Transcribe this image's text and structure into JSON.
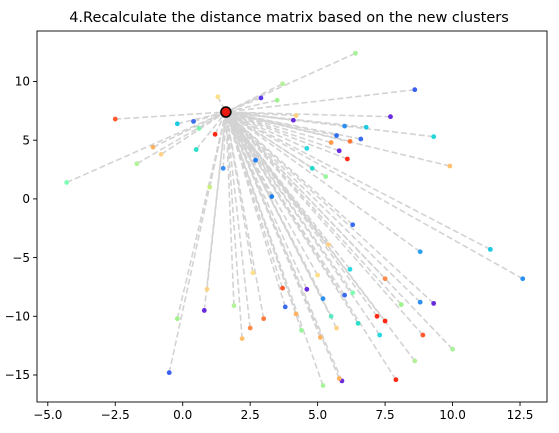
{
  "chart_data": {
    "type": "scatter",
    "title": "4.Recalculate the distance matrix based on the new clusters",
    "xlabel": "",
    "ylabel": "",
    "xlim": [
      -5.4,
      13.5
    ],
    "ylim": [
      -17.3,
      14.3
    ],
    "x_ticks": [
      -5.0,
      -2.5,
      0.0,
      2.5,
      5.0,
      7.5,
      10.0,
      12.5
    ],
    "x_tick_labels": [
      "−5.0",
      "−2.5",
      "0.0",
      "2.5",
      "5.0",
      "7.5",
      "10.0",
      "12.5"
    ],
    "y_ticks": [
      10,
      5,
      0,
      -5,
      -10,
      -15
    ],
    "y_tick_labels": [
      "10",
      "5",
      "0",
      "−5",
      "−10",
      "−15"
    ],
    "grid": false,
    "center": {
      "x": 1.6,
      "y": 7.4,
      "color": "#e8190f"
    },
    "line_color": "#d3d3d3",
    "points": [
      {
        "x": -4.3,
        "y": 1.4,
        "color": "#80ffb4"
      },
      {
        "x": -2.5,
        "y": 6.8,
        "color": "#ff5a2d"
      },
      {
        "x": -1.7,
        "y": 3.0,
        "color": "#b4f29b"
      },
      {
        "x": -1.1,
        "y": 4.4,
        "color": "#ffb360"
      },
      {
        "x": -0.8,
        "y": 3.8,
        "color": "#ffd28a"
      },
      {
        "x": -0.2,
        "y": 6.4,
        "color": "#1ec8e0"
      },
      {
        "x": 0.4,
        "y": 6.6,
        "color": "#3b6cf0"
      },
      {
        "x": 0.5,
        "y": 4.2,
        "color": "#2be0c8"
      },
      {
        "x": 0.6,
        "y": 6.0,
        "color": "#7cf2ad"
      },
      {
        "x": 1.0,
        "y": 1.0,
        "color": "#c8f07a"
      },
      {
        "x": 1.2,
        "y": 5.5,
        "color": "#ff2a14"
      },
      {
        "x": 1.3,
        "y": 8.7,
        "color": "#ffe08a"
      },
      {
        "x": 1.5,
        "y": 2.6,
        "color": "#3a90f0"
      },
      {
        "x": 2.7,
        "y": 3.3,
        "color": "#1f7ef0"
      },
      {
        "x": 2.9,
        "y": 8.6,
        "color": "#5c3ae8"
      },
      {
        "x": 3.5,
        "y": 8.4,
        "color": "#a0f28c"
      },
      {
        "x": 3.7,
        "y": 9.8,
        "color": "#b4f09a"
      },
      {
        "x": 4.1,
        "y": 6.7,
        "color": "#6a2ae0"
      },
      {
        "x": 4.2,
        "y": 7.1,
        "color": "#ffd080"
      },
      {
        "x": 4.6,
        "y": 4.3,
        "color": "#2ad9e0"
      },
      {
        "x": 4.8,
        "y": 2.6,
        "color": "#20d8d0"
      },
      {
        "x": 5.3,
        "y": 1.9,
        "color": "#9cf59c"
      },
      {
        "x": 5.5,
        "y": 4.8,
        "color": "#ff9a4a"
      },
      {
        "x": 5.7,
        "y": 5.4,
        "color": "#2f70f0"
      },
      {
        "x": 5.8,
        "y": 4.1,
        "color": "#6a2ae0"
      },
      {
        "x": 6.0,
        "y": 6.2,
        "color": "#2a90f0"
      },
      {
        "x": 6.1,
        "y": 3.4,
        "color": "#ff2a14"
      },
      {
        "x": 6.2,
        "y": 4.9,
        "color": "#ff7a3a"
      },
      {
        "x": 6.4,
        "y": 12.4,
        "color": "#a8f29c"
      },
      {
        "x": 6.6,
        "y": 5.1,
        "color": "#3b6cf0"
      },
      {
        "x": 6.8,
        "y": 6.1,
        "color": "#1ec8e0"
      },
      {
        "x": 7.7,
        "y": 7.0,
        "color": "#6a2ae0"
      },
      {
        "x": 8.6,
        "y": 9.3,
        "color": "#3b60f0"
      },
      {
        "x": 9.3,
        "y": 5.3,
        "color": "#20d8d8"
      },
      {
        "x": 9.9,
        "y": 2.8,
        "color": "#ffc070"
      },
      {
        "x": 3.3,
        "y": 0.2,
        "color": "#1f7ef0"
      },
      {
        "x": 6.3,
        "y": -2.2,
        "color": "#3b6cf0"
      },
      {
        "x": 8.8,
        "y": -4.5,
        "color": "#2aa0f0"
      },
      {
        "x": 11.4,
        "y": -4.3,
        "color": "#1ec8e0"
      },
      {
        "x": 12.6,
        "y": -6.8,
        "color": "#2a90f0"
      },
      {
        "x": 7.5,
        "y": -6.8,
        "color": "#ff8a4a"
      },
      {
        "x": 9.3,
        "y": -8.9,
        "color": "#6a2ae0"
      },
      {
        "x": 8.8,
        "y": -8.8,
        "color": "#2a90f0"
      },
      {
        "x": 8.1,
        "y": -9.0,
        "color": "#a0f28c"
      },
      {
        "x": 8.9,
        "y": -11.6,
        "color": "#ff5a2d"
      },
      {
        "x": 7.2,
        "y": -10.0,
        "color": "#ff2a14"
      },
      {
        "x": 7.5,
        "y": -10.4,
        "color": "#ff2a14"
      },
      {
        "x": 7.3,
        "y": -11.6,
        "color": "#2ad9e0"
      },
      {
        "x": 8.6,
        "y": -13.8,
        "color": "#b4f09a"
      },
      {
        "x": 7.9,
        "y": -15.4,
        "color": "#ff2a14"
      },
      {
        "x": 10.0,
        "y": -12.8,
        "color": "#a8f29c"
      },
      {
        "x": 6.0,
        "y": -8.2,
        "color": "#3b6cf0"
      },
      {
        "x": 6.3,
        "y": -8.0,
        "color": "#80ffb4"
      },
      {
        "x": 6.5,
        "y": -10.6,
        "color": "#2be0c8"
      },
      {
        "x": 5.7,
        "y": -11.0,
        "color": "#ffd28a"
      },
      {
        "x": 5.1,
        "y": -11.8,
        "color": "#ffb360"
      },
      {
        "x": 5.2,
        "y": -8.5,
        "color": "#2a90f0"
      },
      {
        "x": 5.5,
        "y": -10.0,
        "color": "#5ae8c0"
      },
      {
        "x": 4.6,
        "y": -7.7,
        "color": "#6a2ae0"
      },
      {
        "x": 4.4,
        "y": -11.2,
        "color": "#9cf59c"
      },
      {
        "x": 4.2,
        "y": -9.8,
        "color": "#ffb360"
      },
      {
        "x": 3.8,
        "y": -9.2,
        "color": "#3b6cf0"
      },
      {
        "x": 3.7,
        "y": -7.6,
        "color": "#ff5a2d"
      },
      {
        "x": 5.2,
        "y": -15.9,
        "color": "#a8f29c"
      },
      {
        "x": 5.9,
        "y": -15.5,
        "color": "#6a2ae0"
      },
      {
        "x": 5.8,
        "y": -15.3,
        "color": "#ffb360"
      },
      {
        "x": 5.0,
        "y": -6.5,
        "color": "#ffe08a"
      },
      {
        "x": 5.4,
        "y": -3.9,
        "color": "#ffd28a"
      },
      {
        "x": 6.2,
        "y": -6.0,
        "color": "#2ad9e0"
      },
      {
        "x": 3.0,
        "y": -10.2,
        "color": "#ff7a3a"
      },
      {
        "x": 2.5,
        "y": -11.0,
        "color": "#ff8a4a"
      },
      {
        "x": 2.2,
        "y": -11.9,
        "color": "#ffc070"
      },
      {
        "x": 1.9,
        "y": -9.1,
        "color": "#b4f29b"
      },
      {
        "x": 2.6,
        "y": -6.3,
        "color": "#ffe08a"
      },
      {
        "x": 0.9,
        "y": -7.7,
        "color": "#ffd28a"
      },
      {
        "x": 0.8,
        "y": -9.5,
        "color": "#6a2ae0"
      },
      {
        "x": -0.2,
        "y": -10.2,
        "color": "#a0f28c"
      },
      {
        "x": -0.5,
        "y": -14.8,
        "color": "#3b60f0"
      }
    ]
  }
}
